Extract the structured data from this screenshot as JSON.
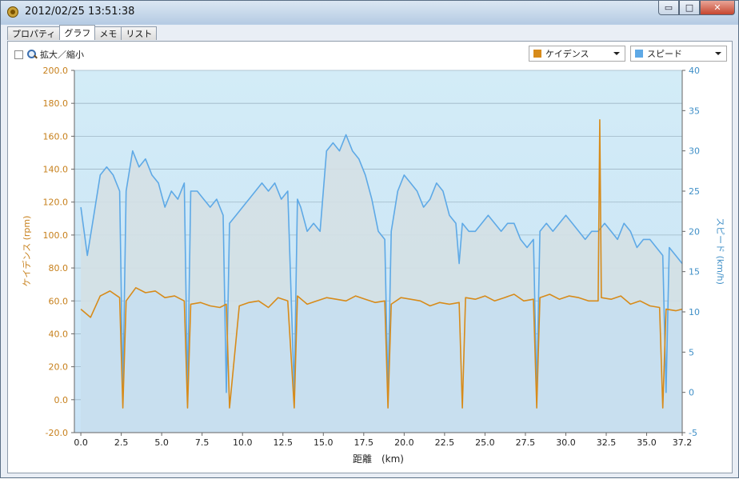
{
  "window": {
    "title": "2012/02/25 13:51:38",
    "buttons": {
      "minimize": "▭",
      "maximize": "□",
      "close": "✕"
    }
  },
  "tabs": [
    {
      "label": "プロパティ",
      "active": false
    },
    {
      "label": "グラフ",
      "active": true
    },
    {
      "label": "メモ",
      "active": false
    },
    {
      "label": "リスト",
      "active": false
    }
  ],
  "toolbar": {
    "zoom_label": "拡大／縮小",
    "zoom_checked": false,
    "left_series_select": "ケイデンス",
    "right_series_select": "スピード"
  },
  "colors": {
    "cadence": "#d78b1a",
    "speed": "#5ea9e6",
    "axis_left": "#c7801c",
    "axis_right": "#3f8fc7"
  },
  "chart_data": {
    "type": "line",
    "xlabel": "距離　(km)",
    "ylabel_left": "ケイデンス (rpm)",
    "ylabel_right": "スピード (km/h)",
    "xlim": [
      -0.4,
      37.2
    ],
    "ylim_left": [
      -20,
      200
    ],
    "ylim_right": [
      -5,
      40
    ],
    "x_ticks": [
      "0.0",
      "2.5",
      "5.0",
      "7.5",
      "10.0",
      "12.5",
      "15.0",
      "17.5",
      "20.0",
      "22.5",
      "25.0",
      "27.5",
      "30.0",
      "32.5",
      "35.0",
      "37.2"
    ],
    "y_left_ticks": [
      "-20.0",
      "0.0",
      "20.0",
      "40.0",
      "60.0",
      "80.0",
      "100.0",
      "120.0",
      "140.0",
      "160.0",
      "180.0",
      "200.0"
    ],
    "y_right_ticks": [
      "-5",
      "0",
      "5",
      "10",
      "15",
      "20",
      "25",
      "30",
      "35",
      "40"
    ],
    "grid": true,
    "series": [
      {
        "name": "ケイデンス",
        "axis": "left",
        "x": [
          0,
          0.6,
          1.2,
          1.8,
          2.4,
          2.6,
          2.8,
          3.4,
          4.0,
          4.6,
          5.2,
          5.8,
          6.4,
          6.6,
          6.8,
          7.4,
          8.0,
          8.6,
          9.0,
          9.2,
          9.8,
          10.4,
          11.0,
          11.6,
          12.2,
          12.8,
          13.2,
          13.4,
          14.0,
          14.6,
          15.2,
          15.8,
          16.4,
          17.0,
          17.6,
          18.2,
          18.8,
          19.0,
          19.2,
          19.8,
          20.4,
          21.0,
          21.6,
          22.2,
          22.8,
          23.4,
          23.6,
          23.8,
          24.4,
          25.0,
          25.6,
          26.2,
          26.8,
          27.4,
          28.0,
          28.2,
          28.4,
          29.0,
          29.6,
          30.2,
          30.8,
          31.4,
          32.0,
          32.1,
          32.2,
          32.8,
          33.4,
          34.0,
          34.6,
          35.2,
          35.8,
          36.0,
          36.2,
          36.8,
          37.2
        ],
        "y": [
          55,
          50,
          63,
          66,
          62,
          -5,
          60,
          68,
          65,
          66,
          62,
          63,
          60,
          -5,
          58,
          59,
          57,
          56,
          58,
          -5,
          57,
          59,
          60,
          56,
          62,
          60,
          -5,
          63,
          58,
          60,
          62,
          61,
          60,
          63,
          61,
          59,
          60,
          -5,
          58,
          62,
          61,
          60,
          57,
          59,
          58,
          59,
          -5,
          62,
          61,
          63,
          60,
          62,
          64,
          60,
          61,
          -5,
          62,
          64,
          61,
          63,
          62,
          60,
          60,
          170,
          62,
          61,
          63,
          58,
          60,
          57,
          56,
          -5,
          55,
          54,
          55
        ]
      },
      {
        "name": "スピード",
        "axis": "right",
        "x": [
          0,
          0.4,
          0.8,
          1.2,
          1.6,
          2.0,
          2.4,
          2.6,
          2.8,
          3.2,
          3.6,
          4.0,
          4.4,
          4.8,
          5.2,
          5.6,
          6.0,
          6.4,
          6.6,
          6.8,
          7.2,
          7.6,
          8.0,
          8.4,
          8.8,
          9.0,
          9.2,
          9.6,
          10.0,
          10.4,
          10.8,
          11.2,
          11.6,
          12.0,
          12.4,
          12.8,
          13.2,
          13.4,
          13.6,
          14.0,
          14.4,
          14.8,
          15.2,
          15.6,
          16.0,
          16.4,
          16.8,
          17.2,
          17.6,
          18.0,
          18.4,
          18.8,
          19.0,
          19.2,
          19.6,
          20.0,
          20.4,
          20.8,
          21.2,
          21.6,
          22.0,
          22.4,
          22.8,
          23.2,
          23.4,
          23.6,
          24.0,
          24.4,
          24.8,
          25.2,
          25.6,
          26.0,
          26.4,
          26.8,
          27.2,
          27.6,
          28.0,
          28.2,
          28.4,
          28.8,
          29.2,
          29.6,
          30.0,
          30.4,
          30.8,
          31.2,
          31.6,
          32.0,
          32.4,
          32.8,
          33.2,
          33.6,
          34.0,
          34.4,
          34.8,
          35.2,
          35.6,
          36.0,
          36.2,
          36.4,
          36.8,
          37.2
        ],
        "y": [
          23,
          17,
          22,
          27,
          28,
          27,
          25,
          0,
          25,
          30,
          28,
          29,
          27,
          26,
          23,
          25,
          24,
          26,
          0,
          25,
          25,
          24,
          23,
          24,
          22,
          0,
          21,
          22,
          23,
          24,
          25,
          26,
          25,
          26,
          24,
          25,
          0,
          24,
          23,
          20,
          21,
          20,
          30,
          31,
          30,
          32,
          30,
          29,
          27,
          24,
          20,
          19,
          0,
          20,
          25,
          27,
          26,
          25,
          23,
          24,
          26,
          25,
          22,
          21,
          16,
          21,
          20,
          20,
          21,
          22,
          21,
          20,
          21,
          21,
          19,
          18,
          19,
          0,
          20,
          21,
          20,
          21,
          22,
          21,
          20,
          19,
          20,
          20,
          21,
          20,
          19,
          21,
          20,
          18,
          19,
          19,
          18,
          17,
          0,
          18,
          17,
          16
        ]
      }
    ]
  }
}
